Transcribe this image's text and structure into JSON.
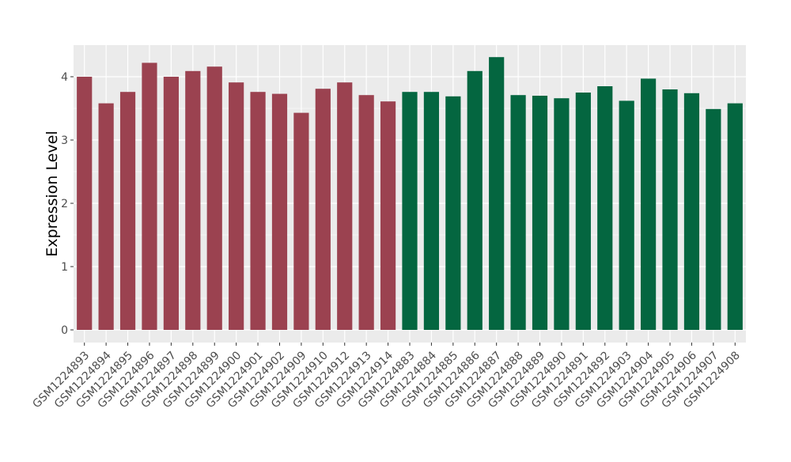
{
  "chart_data": {
    "type": "bar",
    "title": "",
    "xlabel": "",
    "ylabel": "Expression Level",
    "ylim": [
      -0.2,
      4.5
    ],
    "yticks": [
      0,
      1,
      2,
      3,
      4
    ],
    "grid": true,
    "colors": {
      "group_a": "#9b4250",
      "group_b": "#046640",
      "panel": "#ebebeb",
      "grid": "#ffffff"
    },
    "categories": [
      "GSM1224893",
      "GSM1224894",
      "GSM1224895",
      "GSM1224896",
      "GSM1224897",
      "GSM1224898",
      "GSM1224899",
      "GSM1224900",
      "GSM1224901",
      "GSM1224902",
      "GSM1224909",
      "GSM1224910",
      "GSM1224912",
      "GSM1224913",
      "GSM1224914",
      "GSM1224883",
      "GSM1224884",
      "GSM1224885",
      "GSM1224886",
      "GSM1224887",
      "GSM1224888",
      "GSM1224889",
      "GSM1224890",
      "GSM1224891",
      "GSM1224892",
      "GSM1224903",
      "GSM1224904",
      "GSM1224905",
      "GSM1224906",
      "GSM1224907",
      "GSM1224908"
    ],
    "values": [
      4.0,
      3.58,
      3.76,
      4.22,
      4.0,
      4.09,
      4.16,
      3.91,
      3.76,
      3.73,
      3.43,
      3.81,
      3.91,
      3.71,
      3.61,
      3.76,
      3.76,
      3.69,
      4.09,
      4.31,
      3.71,
      3.7,
      3.66,
      3.75,
      3.85,
      3.62,
      3.97,
      3.8,
      3.74,
      3.49,
      3.58
    ],
    "groups": [
      "a",
      "a",
      "a",
      "a",
      "a",
      "a",
      "a",
      "a",
      "a",
      "a",
      "a",
      "a",
      "a",
      "a",
      "a",
      "b",
      "b",
      "b",
      "b",
      "b",
      "b",
      "b",
      "b",
      "b",
      "b",
      "b",
      "b",
      "b",
      "b",
      "b",
      "b"
    ]
  }
}
